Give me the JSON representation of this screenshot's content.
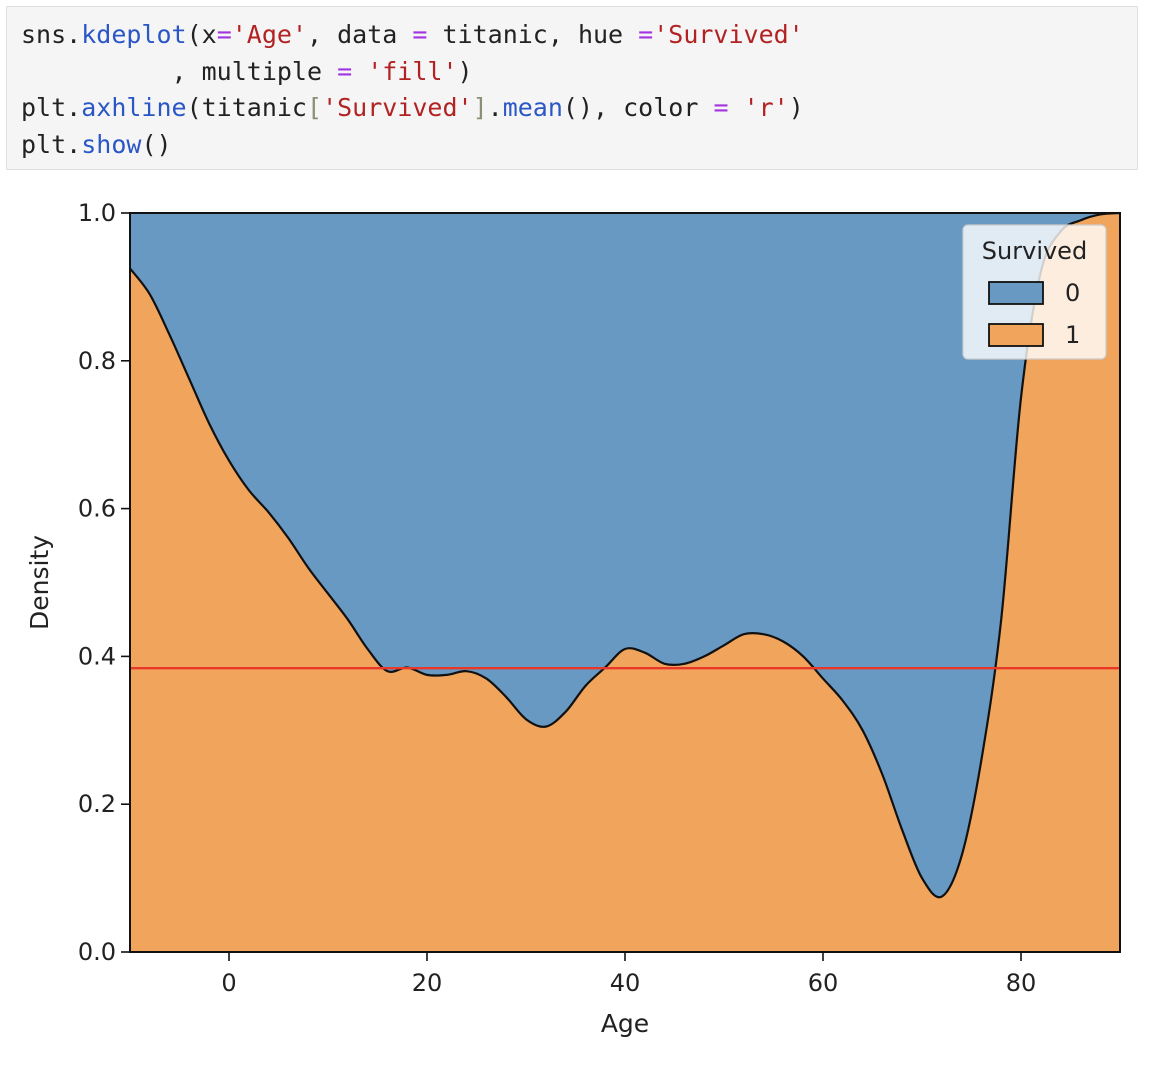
{
  "code_cell": {
    "lines": [
      [
        {
          "t": "sns.",
          "c": "plain"
        },
        {
          "t": "kdeplot",
          "c": "fn"
        },
        {
          "t": "(x",
          "c": "plain"
        },
        {
          "t": "=",
          "c": "op"
        },
        {
          "t": "'Age'",
          "c": "str"
        },
        {
          "t": ", data ",
          "c": "plain"
        },
        {
          "t": "=",
          "c": "op"
        },
        {
          "t": " titanic, hue ",
          "c": "plain"
        },
        {
          "t": "=",
          "c": "op"
        },
        {
          "t": "'Survived'",
          "c": "str"
        }
      ],
      [
        {
          "t": "          , multiple ",
          "c": "plain"
        },
        {
          "t": "=",
          "c": "op"
        },
        {
          "t": " ",
          "c": "plain"
        },
        {
          "t": "'fill'",
          "c": "str"
        },
        {
          "t": ")",
          "c": "plain"
        }
      ],
      [
        {
          "t": "plt.",
          "c": "plain"
        },
        {
          "t": "axhline",
          "c": "fn"
        },
        {
          "t": "(titanic",
          "c": "plain"
        },
        {
          "t": "[",
          "c": "brk"
        },
        {
          "t": "'Survived'",
          "c": "str"
        },
        {
          "t": "]",
          "c": "brk"
        },
        {
          "t": ".",
          "c": "plain"
        },
        {
          "t": "mean",
          "c": "fn"
        },
        {
          "t": "(), color ",
          "c": "plain"
        },
        {
          "t": "=",
          "c": "op"
        },
        {
          "t": " ",
          "c": "plain"
        },
        {
          "t": "'r'",
          "c": "str"
        },
        {
          "t": ")",
          "c": "plain"
        }
      ],
      [
        {
          "t": "plt.",
          "c": "plain"
        },
        {
          "t": "show",
          "c": "fn"
        },
        {
          "t": "()",
          "c": "plain"
        }
      ]
    ]
  },
  "chart_data": {
    "type": "area",
    "stacked": "fill",
    "xlabel": "Age",
    "ylabel": "Density",
    "xlim": [
      -10,
      90
    ],
    "ylim": [
      0,
      1
    ],
    "xticks": [
      0,
      20,
      40,
      60,
      80
    ],
    "yticks": [
      0.0,
      0.2,
      0.4,
      0.6,
      0.8,
      1.0
    ],
    "xtick_labels": [
      "0",
      "20",
      "40",
      "60",
      "80"
    ],
    "ytick_labels": [
      "0.0",
      "0.2",
      "0.4",
      "0.6",
      "0.8",
      "1.0"
    ],
    "grid": false,
    "legend": {
      "title": "Survived",
      "placement": "top-right",
      "entries": [
        {
          "label": "0",
          "color": "#6799c3"
        },
        {
          "label": "1",
          "color": "#f1a45c"
        }
      ]
    },
    "series": [
      {
        "name": "0",
        "color": "#6799c3",
        "role": "upper"
      },
      {
        "name": "1",
        "color": "#f1a45c",
        "role": "lower"
      }
    ],
    "boundary": {
      "x": [
        -10,
        -8,
        -6,
        -4,
        -2,
        0,
        2,
        4,
        6,
        8,
        10,
        12,
        14,
        16,
        18,
        20,
        22,
        24,
        26,
        28,
        30,
        32,
        34,
        36,
        38,
        40,
        42,
        44,
        46,
        48,
        50,
        52,
        54,
        56,
        58,
        60,
        62,
        64,
        66,
        68,
        70,
        72,
        74,
        76,
        78,
        80,
        82,
        84,
        86,
        88,
        90
      ],
      "y": [
        0.925,
        0.89,
        0.835,
        0.775,
        0.715,
        0.665,
        0.625,
        0.595,
        0.56,
        0.52,
        0.485,
        0.45,
        0.41,
        0.38,
        0.385,
        0.375,
        0.375,
        0.38,
        0.37,
        0.345,
        0.315,
        0.305,
        0.325,
        0.36,
        0.385,
        0.41,
        0.405,
        0.39,
        0.39,
        0.4,
        0.415,
        0.43,
        0.43,
        0.42,
        0.4,
        0.37,
        0.34,
        0.3,
        0.24,
        0.165,
        0.1,
        0.075,
        0.13,
        0.26,
        0.45,
        0.75,
        0.92,
        0.975,
        0.99,
        0.998,
        1.0
      ]
    },
    "reference_line": {
      "y": 0.384,
      "color": "#e8382a"
    }
  }
}
